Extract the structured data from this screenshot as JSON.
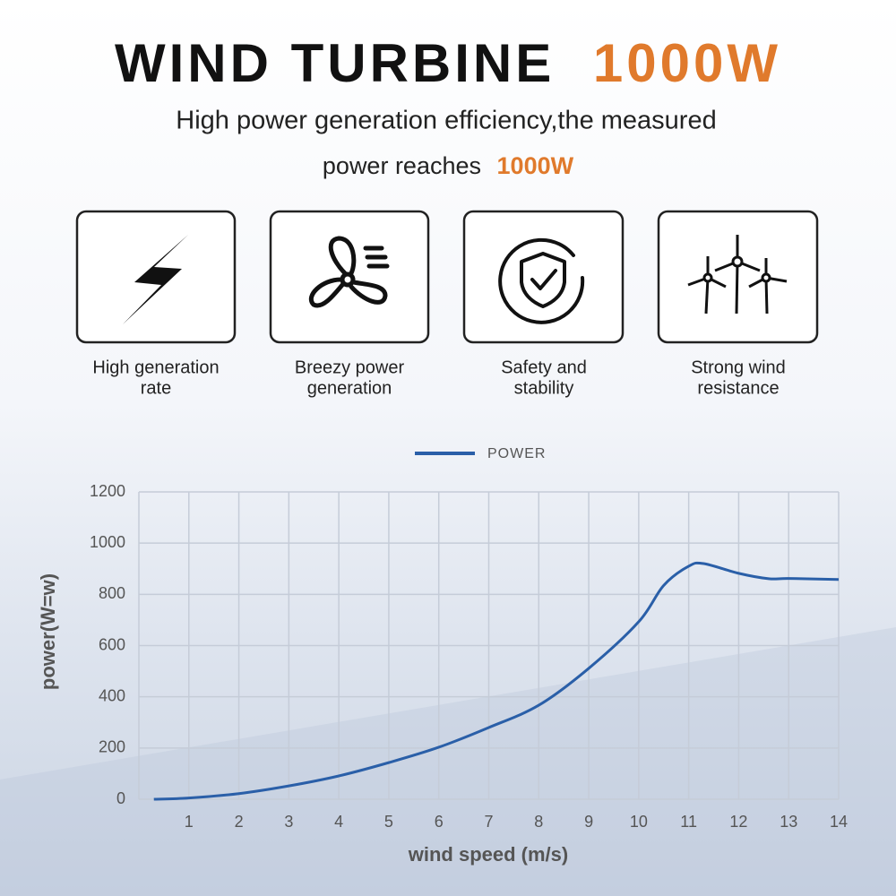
{
  "header": {
    "title": "WIND TURBINE",
    "title_highlight": "1000W",
    "subtitle_line1": "High power generation efficiency,the measured",
    "subtitle_line2": "power reaches",
    "subtitle_highlight": "1000W"
  },
  "features": [
    {
      "label": [
        "High generation",
        "rate"
      ]
    },
    {
      "label": [
        "Breezy power",
        "generation"
      ]
    },
    {
      "label": [
        "Safety and",
        "stability"
      ]
    },
    {
      "label": [
        "Strong wind",
        "resistance"
      ]
    }
  ],
  "chart_data": {
    "type": "line",
    "x_label": "wind speed (m/s)",
    "y_label": "power(W=w)",
    "x": [
      0.3,
      1,
      2,
      3,
      4,
      5,
      6,
      7,
      8,
      9,
      10,
      10.5,
      11,
      11.3,
      12,
      12.6,
      13,
      14
    ],
    "series": [
      {
        "name": "POWER",
        "color": "#2a5fa8",
        "values": [
          0,
          5,
          22,
          52,
          91,
          143,
          203,
          280,
          367,
          511,
          693,
          835,
          910,
          920,
          882,
          861,
          862,
          858
        ]
      }
    ],
    "xlim": [
      0,
      14
    ],
    "xticks": [
      1,
      2,
      3,
      4,
      5,
      6,
      7,
      8,
      9,
      10,
      11,
      12,
      13,
      14
    ],
    "ylim": [
      0,
      1200
    ],
    "yticks": [
      0,
      200,
      400,
      600,
      800,
      1000,
      1200
    ],
    "grid": true
  }
}
